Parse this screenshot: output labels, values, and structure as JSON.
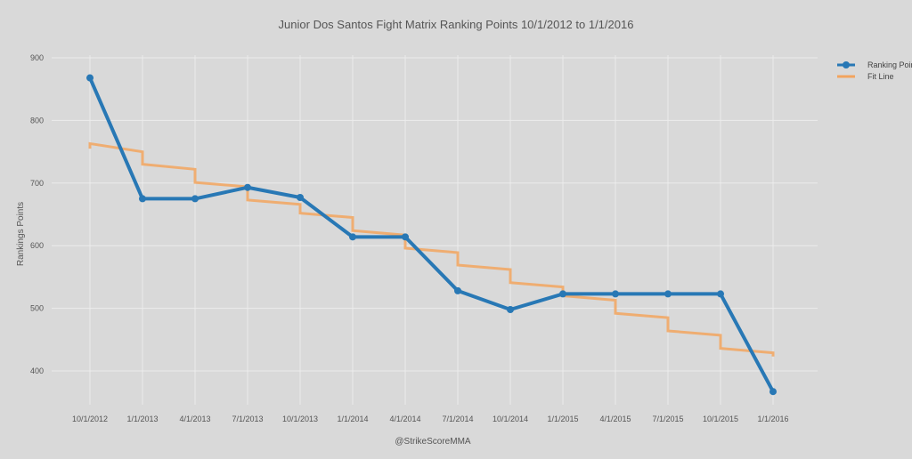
{
  "chart_data": {
    "type": "line",
    "title": "Junior Dos Santos Fight Matrix Ranking Points 10/1/2012 to 1/1/2016",
    "xlabel": "@StrikeScoreMMA",
    "ylabel": "Rankings Points",
    "categories": [
      "10/1/2012",
      "1/1/2013",
      "4/1/2013",
      "7/1/2013",
      "10/1/2013",
      "1/1/2014",
      "4/1/2014",
      "7/1/2014",
      "10/1/2014",
      "1/1/2015",
      "4/1/2015",
      "7/1/2015",
      "10/1/2015",
      "1/1/2016"
    ],
    "yticks": [
      400,
      500,
      600,
      700,
      800,
      900
    ],
    "ylim": [
      340,
      910
    ],
    "grid": true,
    "legend_position": "top-right",
    "series": [
      {
        "name": "Ranking Points",
        "color": "#2878b5",
        "values": [
          868,
          675,
          675,
          693,
          677,
          614,
          614,
          528,
          498,
          523,
          523,
          523,
          523,
          367
        ]
      },
      {
        "name": "Fit Line",
        "color": "#f2a45e",
        "step_segments": [
          [
            763,
            750
          ],
          [
            730,
            722
          ],
          [
            701,
            694
          ],
          [
            673,
            666
          ],
          [
            652,
            645
          ],
          [
            624,
            617
          ],
          [
            596,
            589
          ],
          [
            569,
            562
          ],
          [
            541,
            534
          ],
          [
            520,
            513
          ],
          [
            492,
            485
          ],
          [
            464,
            457
          ],
          [
            436,
            429
          ]
        ]
      }
    ]
  }
}
